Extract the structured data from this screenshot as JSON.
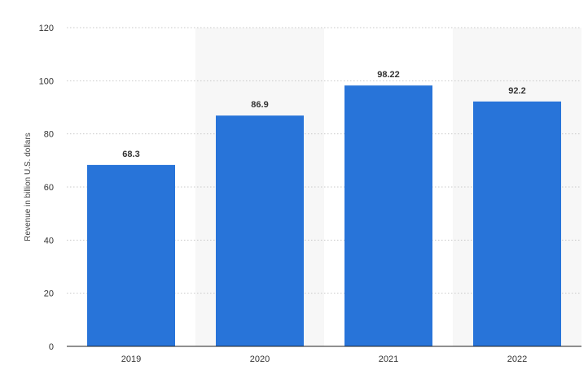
{
  "chart_data": {
    "type": "bar",
    "categories": [
      "2019",
      "2020",
      "2021",
      "2022"
    ],
    "values": [
      68.3,
      86.9,
      98.22,
      92.2
    ],
    "data_labels": [
      "68.3",
      "86.9",
      "98.22",
      "92.2"
    ],
    "title": "",
    "xlabel": "",
    "ylabel": "Revenue in billion U.S. dollars",
    "ylim": [
      0,
      120
    ],
    "yticks": [
      0,
      20,
      40,
      60,
      80,
      100,
      120
    ],
    "grid": true,
    "legend": "none"
  },
  "colors": {
    "bar": "#2874d9",
    "alt_band": "#f7f7f7",
    "grid": "#c8c8c8",
    "axis": "#222222"
  }
}
